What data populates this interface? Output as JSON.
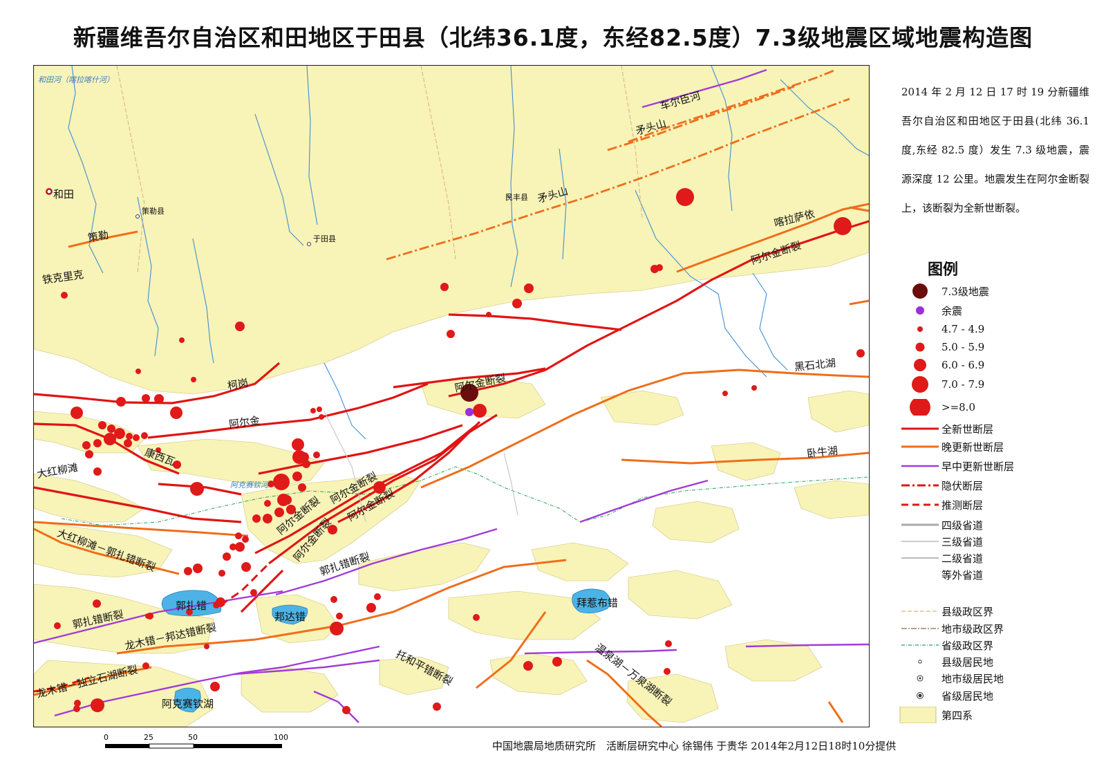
{
  "title": "新疆维吾尔自治区和田地区于田县（北纬36.1度，东经82.5度）7.3级地震区域地震构造图",
  "description": "2014 年 2 月 12 日 17 时 19 分新疆维吾尔自治区和田地区于田县(北纬 36.1度,东经 82.5 度）发生 7.3 级地震，震源深度 12 公里。地震发生在阿尔金断裂上，该断裂为全新世断裂。",
  "legend": {
    "title": "图例",
    "items": [
      {
        "label": "7.3级地震",
        "symbol": "mainshock-icon"
      },
      {
        "label": "余震",
        "symbol": "aftershock-icon"
      },
      {
        "label": "4.7 - 4.9",
        "symbol": "quake-4-icon"
      },
      {
        "label": "5.0 - 5.9",
        "symbol": "quake-5-icon"
      },
      {
        "label": "6.0 - 6.9",
        "symbol": "quake-6-icon"
      },
      {
        "label": "7.0 - 7.9",
        "symbol": "quake-7-icon"
      },
      {
        "label": ">=8.0",
        "symbol": "quake-8-icon"
      },
      {
        "label": "全新世断层",
        "symbol": "holocene-fault-line"
      },
      {
        "label": "晚更新世断层",
        "symbol": "late-pleistocene-fault-line"
      },
      {
        "label": "早中更新世断层",
        "symbol": "early-middle-pleistocene-fault-line"
      },
      {
        "label": "隐伏断层",
        "symbol": "buried-fault-line"
      },
      {
        "label": "推测断层",
        "symbol": "inferred-fault-line"
      },
      {
        "label": "四级省道",
        "symbol": "road-4-line"
      },
      {
        "label": "三级省道",
        "symbol": "road-3-line"
      },
      {
        "label": "二级省道",
        "symbol": "road-2-line"
      },
      {
        "label": "等外省道",
        "symbol": "road-substandard-line"
      },
      {
        "label": "县级政区界",
        "symbol": "county-boundary-line"
      },
      {
        "label": "地市级政区界",
        "symbol": "prefecture-boundary-line"
      },
      {
        "label": "省级政区界",
        "symbol": "province-boundary-line"
      },
      {
        "label": "县级居民地",
        "symbol": "county-settlement-icon"
      },
      {
        "label": "地市级居民地",
        "symbol": "prefecture-settlement-icon"
      },
      {
        "label": "省级居民地",
        "symbol": "province-settlement-icon"
      },
      {
        "label": "第四系",
        "symbol": "quaternary-area"
      }
    ]
  },
  "map_labels": {
    "hetian_river": "和田河（喀拉喀什河）",
    "hetian": "和田",
    "cele_county": "策勒县",
    "cele": "策勒",
    "yutian_county": "于田县",
    "minfeng_county": "民丰县",
    "tiekelike": "铁克里克",
    "keyin": "柯岗",
    "aerjin": "阿尔金",
    "kangxiwa": "康西瓦",
    "dahongliutan": "大红柳滩",
    "dahong_guozha_fault": "大红柳滩－郭扎错断裂",
    "guozha_fault": "郭扎错断裂",
    "guozha_fault_2": "郭扎错断裂",
    "longmu_bangda_fault": "龙木错－邦达错断裂",
    "longmu_dulishihu_fault": "龙木错－独立石湖断裂",
    "tuohe_fault": "托和平错断裂",
    "wenquan_fault": "温泉湖－万泉湖断裂",
    "aerjin_fault_1": "阿尔金断裂",
    "aerjin_fault_2": "阿尔金断裂",
    "aerjin_fault_3": "阿尔金断裂",
    "aerjin_fault_4": "阿尔金断裂",
    "aerjin_fault_5": "阿尔金断裂",
    "aerjin_fault_6": "阿尔金断裂",
    "kalasayi": "喀拉萨依",
    "heishibeihu": "黑石北湖",
    "woniuhu": "卧牛湖",
    "cheerchen_river": "车尔臣河",
    "maotoushan_1": "矛头山",
    "maotoushan_2": "矛头山",
    "guozhacuo_lake": "郭扎错",
    "bangdacuo_lake": "邦达错",
    "baishacuo_lake": "拜惹布错",
    "aksaiqin_lake": "阿克赛钦湖",
    "aksaiqin_river": "阿克赛钦河"
  },
  "scale_bar": {
    "ticks": [
      "0",
      "25",
      "50",
      "100 km"
    ]
  },
  "credit": "中国地震局地质研究所　活断层研究中心 徐锡伟 于贵华 2014年2月12日18时10分提供",
  "colors": {
    "quaternary": "#f8f3b7",
    "quake": "#e01919",
    "mainshock": "#6a0d0d",
    "aftershock": "#9b30d8",
    "holocene_fault": "#e01414",
    "late_pleistocene_fault": "#ef6d1a",
    "early_pleistocene_fault": "#a23ad8",
    "river": "#3d8ed6",
    "lake": "#4db3e6"
  },
  "earthquake": {
    "magnitude": 7.3,
    "latitude_deg_N": 36.1,
    "longitude_deg_E": 82.5,
    "depth_km": 12,
    "date": "2014年2月12日17时19分"
  }
}
